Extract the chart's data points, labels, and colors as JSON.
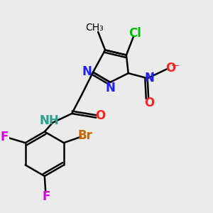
{
  "bg_color": "#ebebeb",
  "bond_color": "#000000",
  "bond_lw": 1.8,
  "colors": {
    "Cl": "#00bb00",
    "N": "#2020ff",
    "O": "#ff2020",
    "NH": "#2aa090",
    "Br": "#cc6600",
    "F": "#dd00dd",
    "C": "#000000"
  }
}
